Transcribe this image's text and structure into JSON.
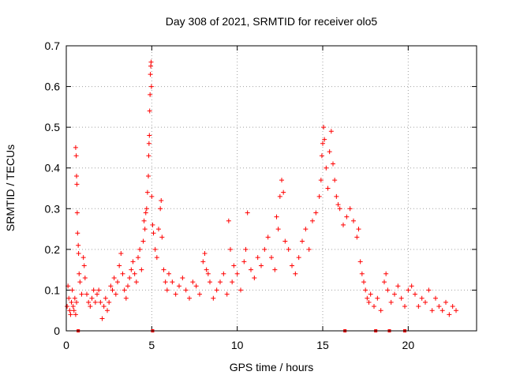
{
  "chart_data": {
    "type": "scatter",
    "title": "Day 308 of 2021, SRMTID for receiver olo5",
    "xlabel": "GPS time / hours",
    "ylabel": "SRMTID / TECUs",
    "xlim": [
      0,
      24
    ],
    "ylim": [
      0,
      0.7
    ],
    "grid": true,
    "x_ticks": [
      0,
      5,
      10,
      15,
      20
    ],
    "y_ticks": [
      0,
      0.1,
      0.2,
      0.3,
      0.4,
      0.5,
      0.6,
      0.7
    ],
    "x_tick_labels": [
      "0",
      "5",
      "10",
      "15",
      "20"
    ],
    "y_tick_labels": [
      "0",
      "0.1",
      "0.2",
      "0.3",
      "0.4",
      "0.5",
      "0.6",
      "0.7"
    ],
    "marker": "+",
    "series": [
      {
        "name": "SRMTID",
        "color": "#ff0000",
        "points": [
          [
            0.05,
            0.06
          ],
          [
            0.1,
            0.11
          ],
          [
            0.15,
            0.08
          ],
          [
            0.2,
            0.05
          ],
          [
            0.25,
            0.04
          ],
          [
            0.3,
            0.07
          ],
          [
            0.35,
            0.1
          ],
          [
            0.4,
            0.06
          ],
          [
            0.45,
            0.05
          ],
          [
            0.5,
            0.08
          ],
          [
            0.55,
            0.04
          ],
          [
            0.6,
            0.07
          ],
          [
            0.55,
            0.45
          ],
          [
            0.58,
            0.43
          ],
          [
            0.6,
            0.38
          ],
          [
            0.62,
            0.36
          ],
          [
            0.64,
            0.29
          ],
          [
            0.66,
            0.24
          ],
          [
            0.7,
            0.21
          ],
          [
            0.72,
            0.19
          ],
          [
            0.75,
            0.14
          ],
          [
            0.8,
            0.12
          ],
          [
            0.9,
            0.09
          ],
          [
            1.0,
            0.18
          ],
          [
            1.05,
            0.16
          ],
          [
            1.1,
            0.13
          ],
          [
            1.2,
            0.09
          ],
          [
            1.3,
            0.07
          ],
          [
            1.4,
            0.06
          ],
          [
            1.5,
            0.08
          ],
          [
            1.6,
            0.1
          ],
          [
            1.7,
            0.07
          ],
          [
            1.8,
            0.09
          ],
          [
            1.9,
            0.1
          ],
          [
            2.0,
            0.07
          ],
          [
            2.1,
            0.03
          ],
          [
            2.2,
            0.06
          ],
          [
            2.3,
            0.08
          ],
          [
            2.4,
            0.05
          ],
          [
            2.5,
            0.07
          ],
          [
            2.6,
            0.11
          ],
          [
            2.7,
            0.1
          ],
          [
            2.8,
            0.13
          ],
          [
            2.9,
            0.09
          ],
          [
            3.0,
            0.12
          ],
          [
            3.1,
            0.16
          ],
          [
            3.2,
            0.19
          ],
          [
            3.3,
            0.14
          ],
          [
            3.4,
            0.1
          ],
          [
            3.5,
            0.08
          ],
          [
            3.6,
            0.11
          ],
          [
            3.7,
            0.13
          ],
          [
            3.8,
            0.15
          ],
          [
            3.9,
            0.17
          ],
          [
            4.0,
            0.14
          ],
          [
            4.1,
            0.12
          ],
          [
            4.2,
            0.18
          ],
          [
            4.3,
            0.2
          ],
          [
            4.4,
            0.15
          ],
          [
            4.5,
            0.22
          ],
          [
            4.55,
            0.27
          ],
          [
            4.6,
            0.25
          ],
          [
            4.65,
            0.29
          ],
          [
            4.7,
            0.3
          ],
          [
            4.75,
            0.34
          ],
          [
            4.8,
            0.38
          ],
          [
            4.82,
            0.43
          ],
          [
            4.84,
            0.46
          ],
          [
            4.86,
            0.48
          ],
          [
            4.88,
            0.54
          ],
          [
            4.9,
            0.58
          ],
          [
            4.92,
            0.63
          ],
          [
            4.94,
            0.65
          ],
          [
            4.96,
            0.66
          ],
          [
            4.98,
            0.6
          ],
          [
            5.0,
            0.33
          ],
          [
            5.05,
            0.26
          ],
          [
            5.1,
            0.24
          ],
          [
            5.2,
            0.2
          ],
          [
            5.3,
            0.18
          ],
          [
            5.4,
            0.25
          ],
          [
            5.5,
            0.3
          ],
          [
            5.55,
            0.32
          ],
          [
            5.6,
            0.23
          ],
          [
            5.7,
            0.15
          ],
          [
            5.8,
            0.12
          ],
          [
            5.9,
            0.1
          ],
          [
            6.0,
            0.14
          ],
          [
            6.2,
            0.12
          ],
          [
            6.4,
            0.09
          ],
          [
            6.6,
            0.11
          ],
          [
            6.8,
            0.13
          ],
          [
            7.0,
            0.1
          ],
          [
            7.2,
            0.08
          ],
          [
            7.4,
            0.12
          ],
          [
            7.6,
            0.11
          ],
          [
            7.8,
            0.09
          ],
          [
            8.0,
            0.17
          ],
          [
            8.1,
            0.19
          ],
          [
            8.2,
            0.15
          ],
          [
            8.3,
            0.14
          ],
          [
            8.4,
            0.12
          ],
          [
            8.6,
            0.08
          ],
          [
            8.8,
            0.1
          ],
          [
            9.0,
            0.12
          ],
          [
            9.2,
            0.14
          ],
          [
            9.4,
            0.09
          ],
          [
            9.5,
            0.27
          ],
          [
            9.6,
            0.2
          ],
          [
            9.7,
            0.12
          ],
          [
            9.8,
            0.16
          ],
          [
            10.0,
            0.14
          ],
          [
            10.2,
            0.1
          ],
          [
            10.4,
            0.17
          ],
          [
            10.5,
            0.2
          ],
          [
            10.6,
            0.29
          ],
          [
            10.8,
            0.15
          ],
          [
            11.0,
            0.13
          ],
          [
            11.2,
            0.18
          ],
          [
            11.4,
            0.16
          ],
          [
            11.6,
            0.2
          ],
          [
            11.8,
            0.23
          ],
          [
            12.0,
            0.18
          ],
          [
            12.2,
            0.15
          ],
          [
            12.3,
            0.28
          ],
          [
            12.4,
            0.25
          ],
          [
            12.5,
            0.33
          ],
          [
            12.6,
            0.37
          ],
          [
            12.7,
            0.34
          ],
          [
            12.8,
            0.22
          ],
          [
            13.0,
            0.2
          ],
          [
            13.2,
            0.16
          ],
          [
            13.4,
            0.14
          ],
          [
            13.6,
            0.18
          ],
          [
            13.8,
            0.22
          ],
          [
            14.0,
            0.25
          ],
          [
            14.2,
            0.2
          ],
          [
            14.4,
            0.27
          ],
          [
            14.6,
            0.29
          ],
          [
            14.8,
            0.33
          ],
          [
            14.9,
            0.37
          ],
          [
            14.95,
            0.43
          ],
          [
            15.0,
            0.46
          ],
          [
            15.05,
            0.5
          ],
          [
            15.1,
            0.47
          ],
          [
            15.2,
            0.4
          ],
          [
            15.3,
            0.35
          ],
          [
            15.4,
            0.44
          ],
          [
            15.5,
            0.49
          ],
          [
            15.6,
            0.41
          ],
          [
            15.7,
            0.37
          ],
          [
            15.8,
            0.33
          ],
          [
            15.9,
            0.31
          ],
          [
            16.0,
            0.3
          ],
          [
            16.2,
            0.26
          ],
          [
            16.4,
            0.28
          ],
          [
            16.6,
            0.3
          ],
          [
            16.8,
            0.27
          ],
          [
            17.0,
            0.23
          ],
          [
            17.1,
            0.25
          ],
          [
            17.2,
            0.17
          ],
          [
            17.3,
            0.14
          ],
          [
            17.4,
            0.12
          ],
          [
            17.5,
            0.1
          ],
          [
            17.6,
            0.08
          ],
          [
            17.7,
            0.07
          ],
          [
            17.8,
            0.09
          ],
          [
            18.0,
            0.06
          ],
          [
            18.2,
            0.08
          ],
          [
            18.4,
            0.05
          ],
          [
            18.6,
            0.12
          ],
          [
            18.7,
            0.14
          ],
          [
            18.8,
            0.1
          ],
          [
            19.0,
            0.07
          ],
          [
            19.2,
            0.09
          ],
          [
            19.4,
            0.11
          ],
          [
            19.6,
            0.08
          ],
          [
            19.8,
            0.06
          ],
          [
            20.0,
            0.1
          ],
          [
            20.2,
            0.11
          ],
          [
            20.4,
            0.09
          ],
          [
            20.6,
            0.06
          ],
          [
            20.8,
            0.08
          ],
          [
            21.0,
            0.07
          ],
          [
            21.2,
            0.1
          ],
          [
            21.4,
            0.05
          ],
          [
            21.6,
            0.08
          ],
          [
            21.8,
            0.06
          ],
          [
            22.0,
            0.05
          ],
          [
            22.2,
            0.07
          ],
          [
            22.4,
            0.04
          ],
          [
            22.6,
            0.06
          ],
          [
            22.8,
            0.05
          ]
        ],
        "baseline_markers_x": [
          0.7,
          5.05,
          16.3,
          18.1,
          18.9,
          19.8
        ]
      }
    ]
  }
}
